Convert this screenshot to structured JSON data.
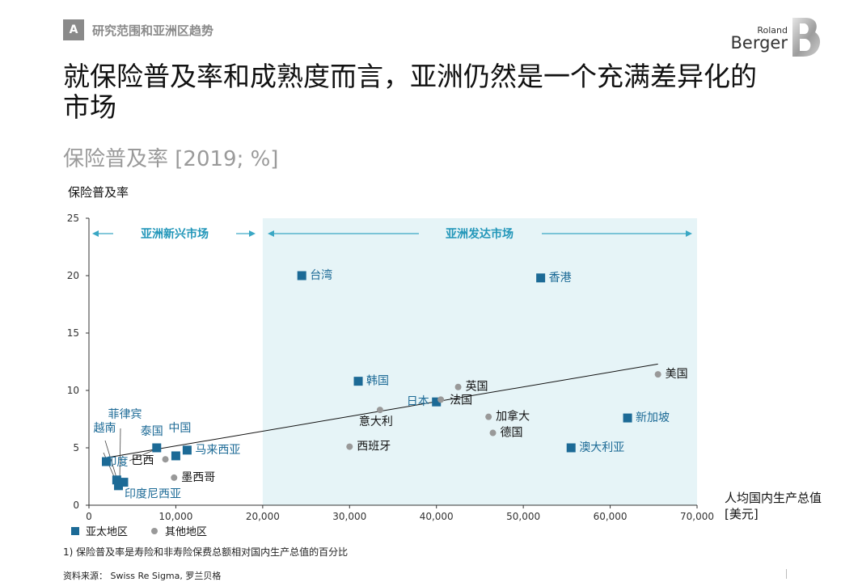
{
  "header": {
    "section_letter": "A",
    "section_label": "研究范围和亚洲区趋势",
    "logo_small": "Roland",
    "logo_large": "Berger"
  },
  "headline": "就保险普及率和成熟度而言，亚洲仍然是一个充满差异化的市场",
  "subtitle": "保险普及率 [2019; %]",
  "footnote": "1) 保险普及率是寿险和非寿险保费总额相对国内生产总值的百分比",
  "source": "资料来源： Swiss Re Sigma, 罗兰贝格",
  "colors": {
    "asia": "#1c6a96",
    "other": "#999999",
    "shade": "#e6f4f7",
    "arrow": "#3aa7c4",
    "region_label": "#2196b9"
  },
  "chart_data": {
    "type": "scatter",
    "ylabel": "保险普及率",
    "xlabel": "人均国内生产总值",
    "xlabel_unit": "[美元]",
    "xlim": [
      0,
      70000
    ],
    "ylim": [
      0,
      25
    ],
    "x_ticks": [
      0,
      10000,
      20000,
      30000,
      40000,
      50000,
      60000,
      70000
    ],
    "x_tick_labels": [
      "0",
      "10,000",
      "20,000",
      "30,000",
      "40,000",
      "50,000",
      "60,000",
      "70,000"
    ],
    "y_ticks": [
      0,
      5,
      10,
      15,
      20,
      25
    ],
    "y_tick_labels": [
      "0",
      "5",
      "10",
      "15",
      "20",
      "25"
    ],
    "regions": [
      {
        "name": "亚洲新兴市场",
        "x_range": [
          0,
          20000
        ]
      },
      {
        "name": "亚洲发达市场",
        "x_range": [
          20000,
          70000
        ],
        "shaded": true
      }
    ],
    "legend": [
      {
        "label": "亚太地区",
        "series": "asia"
      },
      {
        "label": "其他地区",
        "series": "other"
      }
    ],
    "trend_line": {
      "from": [
        2500,
        4.2
      ],
      "to": [
        65500,
        12.3
      ]
    },
    "series": [
      {
        "name": "亚太地区",
        "marker": "square",
        "points": [
          {
            "label": "台湾",
            "x": 24500,
            "y": 20.0
          },
          {
            "label": "香港",
            "x": 52000,
            "y": 19.8
          },
          {
            "label": "韩国",
            "x": 31000,
            "y": 10.8
          },
          {
            "label": "日本",
            "x": 40000,
            "y": 9.0
          },
          {
            "label": "新加坡",
            "x": 62000,
            "y": 7.6
          },
          {
            "label": "澳大利亚",
            "x": 55500,
            "y": 5.0
          },
          {
            "label": "马来西亚",
            "x": 11300,
            "y": 4.8
          },
          {
            "label": "中国",
            "x": 10000,
            "y": 4.3
          },
          {
            "label": "泰国",
            "x": 7800,
            "y": 5.0
          },
          {
            "label": "越南",
            "x": 2000,
            "y": 3.8
          },
          {
            "label": "印度",
            "x": 3200,
            "y": 2.2
          },
          {
            "label": "菲律宾",
            "x": 3400,
            "y": 1.7
          },
          {
            "label": "印度尼西亚",
            "x": 4000,
            "y": 2.0
          }
        ]
      },
      {
        "name": "其他地区",
        "marker": "circle",
        "points": [
          {
            "label": "美国",
            "x": 65500,
            "y": 11.4
          },
          {
            "label": "英国",
            "x": 42500,
            "y": 10.3
          },
          {
            "label": "法国",
            "x": 40500,
            "y": 9.2
          },
          {
            "label": "意大利",
            "x": 33500,
            "y": 8.3
          },
          {
            "label": "加拿大",
            "x": 46000,
            "y": 7.7
          },
          {
            "label": "德国",
            "x": 46500,
            "y": 6.3
          },
          {
            "label": "西班牙",
            "x": 30000,
            "y": 5.1
          },
          {
            "label": "巴西",
            "x": 8800,
            "y": 4.0
          },
          {
            "label": "墨西哥",
            "x": 9800,
            "y": 2.4
          }
        ]
      }
    ]
  }
}
